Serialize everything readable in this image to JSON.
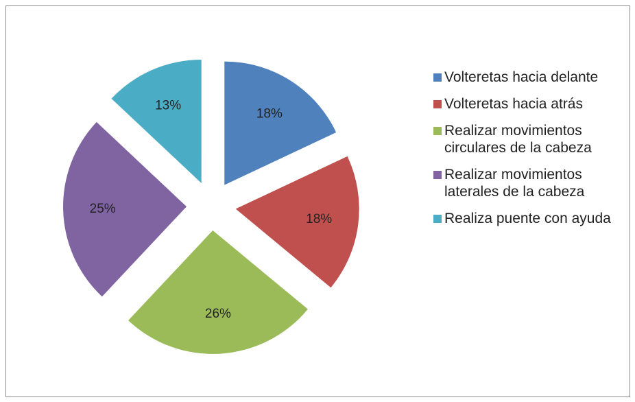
{
  "chart_data": {
    "type": "pie",
    "categories": [
      "Volteretas hacia delante",
      "Volteretas hacia atrás",
      "Realizar movimientos circulares de la cabeza",
      "Realizar movimientos laterales de la cabeza",
      "Realiza puente con ayuda"
    ],
    "values": [
      18,
      18,
      26,
      25,
      13
    ],
    "value_labels": [
      "18%",
      "18%",
      "26%",
      "25%",
      "13%"
    ],
    "colors": [
      "#4f81bd",
      "#c0504d",
      "#9bbb59",
      "#8064a2",
      "#4bacc6"
    ],
    "legend": "right"
  }
}
